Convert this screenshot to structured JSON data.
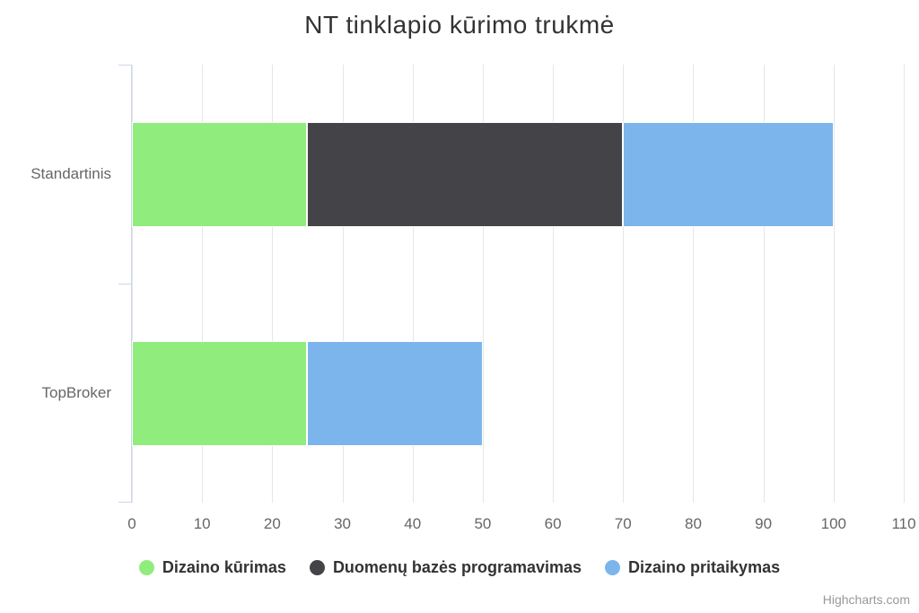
{
  "title": "NT tinklapio kūrimo trukmė",
  "credits": "Highcharts.com",
  "chart_data": {
    "type": "bar",
    "stacked": true,
    "title": "NT tinklapio kūrimo trukmė",
    "categories": [
      "Standartinis",
      "TopBroker"
    ],
    "series": [
      {
        "name": "Dizaino kūrimas",
        "color": "#90ed7d",
        "values": [
          25,
          25
        ]
      },
      {
        "name": "Duomenų bazės programavimas",
        "color": "#434348",
        "values": [
          45,
          0
        ]
      },
      {
        "name": "Dizaino pritaikymas",
        "color": "#7cb5ec",
        "values": [
          30,
          25
        ]
      }
    ],
    "xlabel": "",
    "ylabel": "",
    "value_axis": {
      "min": 0,
      "max": 110,
      "tick_interval": 10,
      "ticks": [
        0,
        10,
        20,
        30,
        40,
        50,
        60,
        70,
        80,
        90,
        100,
        110
      ]
    },
    "grid": true,
    "legend_position": "bottom",
    "colors": {
      "grid_line": "#e6e6e6",
      "axis_line": "#ccd6eb",
      "tick_label": "#666666",
      "title": "#333333",
      "legend_text": "#333333",
      "credits": "#999999",
      "background": "#ffffff"
    }
  }
}
